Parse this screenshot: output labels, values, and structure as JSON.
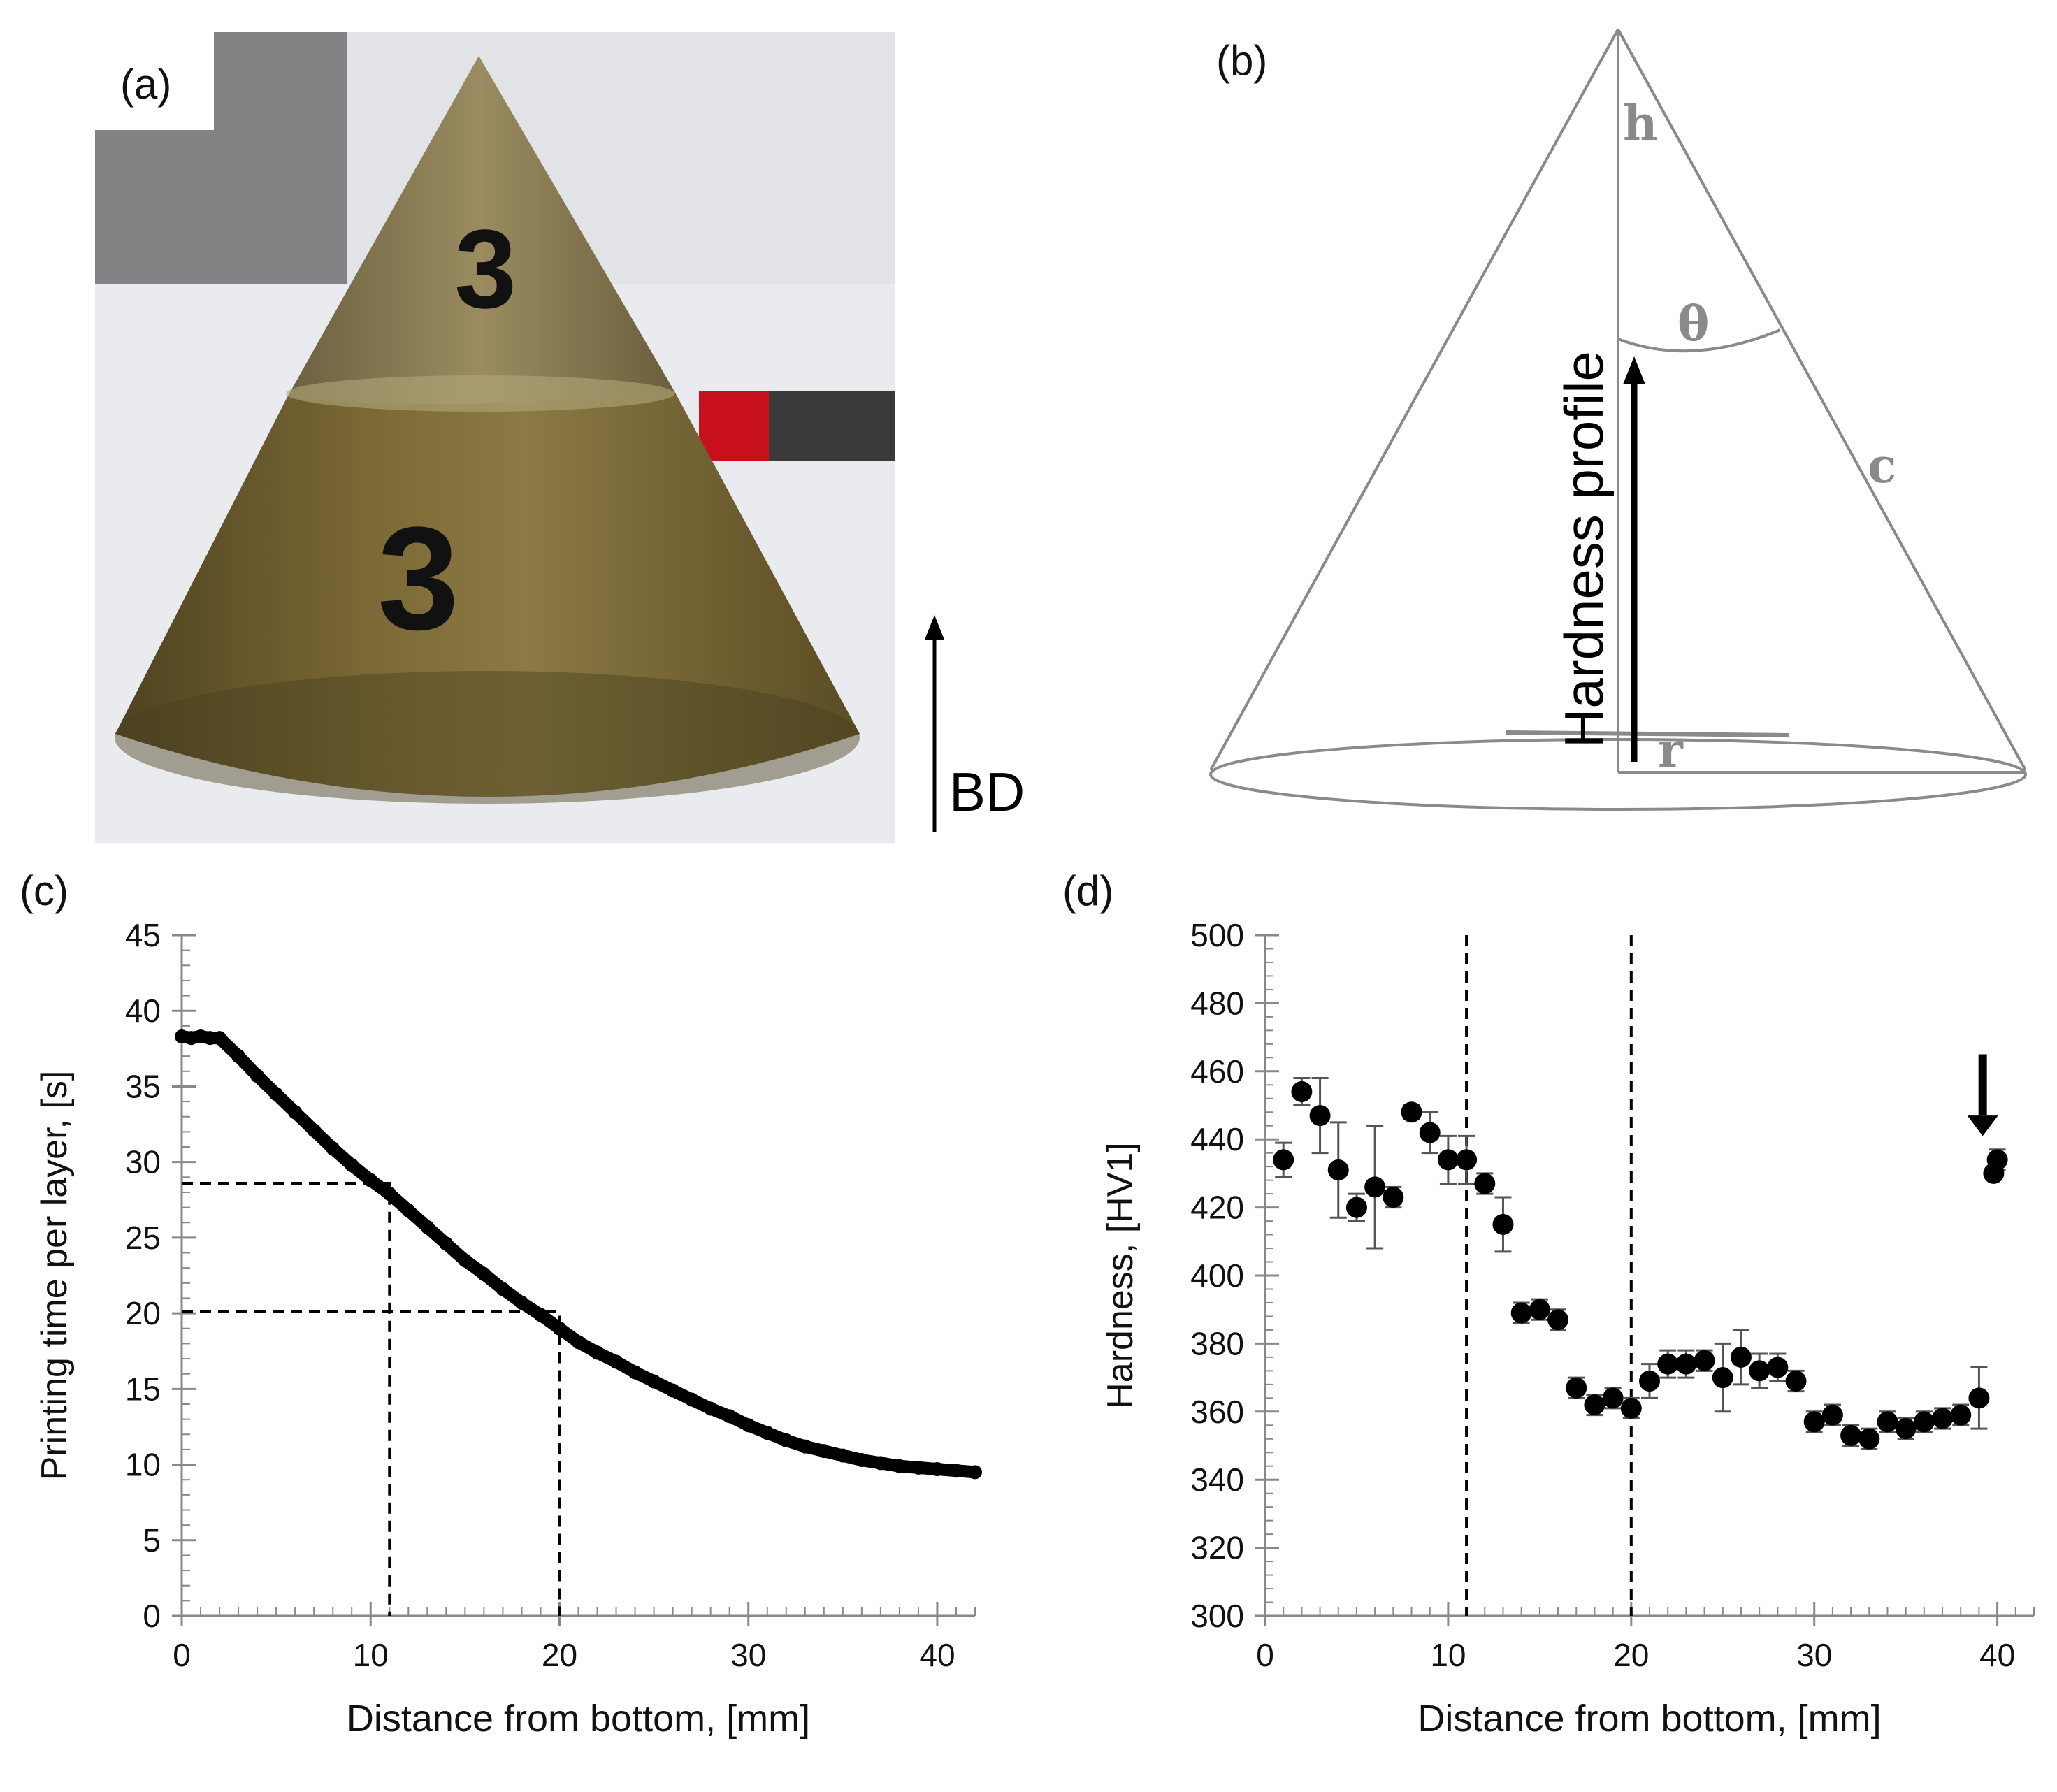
{
  "panels": {
    "a": {
      "label": "(a)",
      "build_direction_label": "BD",
      "marking_top": "3",
      "marking_bottom": "3"
    },
    "b": {
      "label": "(b)",
      "profile_label": "Hardness profile",
      "h": "h",
      "theta": "θ",
      "c": "c",
      "r": "r"
    },
    "c": {
      "label": "(c)"
    },
    "d": {
      "label": "(d)"
    }
  },
  "colors": {
    "ink": "#000000",
    "axis": "#888888",
    "diagram": "#8a8a8a",
    "bronze": "#6b5a2a",
    "bronze_light": "#8a7a48",
    "bg_dark": "#1c1c1c"
  },
  "chart_data": [
    {
      "id": "c",
      "type": "scatter",
      "title": "",
      "xlabel": "Distance from bottom, [mm]",
      "ylabel": "Printing time per layer, [s]",
      "xlim": [
        0,
        42
      ],
      "ylim": [
        0,
        45
      ],
      "xticks": [
        "0",
        "10",
        "20",
        "30",
        "40"
      ],
      "yticks": [
        "0",
        "5",
        "10",
        "15",
        "20",
        "25",
        "30",
        "35",
        "40",
        "45"
      ],
      "series": [
        {
          "name": "Printing time per layer",
          "x": [
            0,
            0.5,
            1,
            1.5,
            2,
            3,
            4,
            5,
            6,
            7,
            8,
            9,
            10,
            11,
            12,
            13,
            14,
            15,
            16,
            17,
            18,
            19,
            20,
            21,
            22,
            23,
            24,
            25,
            26,
            27,
            28,
            29,
            30,
            31,
            32,
            33,
            34,
            35,
            36,
            37,
            38,
            39,
            40,
            41,
            42
          ],
          "y": [
            38.3,
            38.2,
            38.3,
            38.2,
            38.2,
            37.0,
            35.7,
            34.5,
            33.3,
            32.1,
            30.9,
            29.8,
            28.8,
            27.9,
            26.8,
            25.7,
            24.6,
            23.5,
            22.6,
            21.6,
            20.7,
            19.9,
            19.0,
            18.1,
            17.4,
            16.8,
            16.1,
            15.5,
            14.9,
            14.3,
            13.7,
            13.2,
            12.6,
            12.1,
            11.6,
            11.2,
            10.9,
            10.6,
            10.3,
            10.1,
            9.9,
            9.8,
            9.7,
            9.6,
            9.5
          ]
        }
      ],
      "reference_lines": [
        {
          "x": 11,
          "y": 28.6
        },
        {
          "x": 20,
          "y": 20.1
        }
      ]
    },
    {
      "id": "d",
      "type": "scatter",
      "title": "",
      "xlabel": "Distance from bottom, [mm]",
      "ylabel": "Hardness, [HV1]",
      "xlim": [
        0,
        42
      ],
      "ylim": [
        300,
        500
      ],
      "xticks": [
        "0",
        "10",
        "20",
        "30",
        "40"
      ],
      "yticks": [
        "300",
        "320",
        "340",
        "360",
        "380",
        "400",
        "420",
        "440",
        "460",
        "480",
        "500"
      ],
      "series": [
        {
          "name": "Hardness",
          "x": [
            1,
            2,
            3,
            4,
            5,
            6,
            7,
            8,
            9,
            10,
            11,
            12,
            13,
            14,
            15,
            16,
            17,
            18,
            19,
            20,
            21,
            22,
            23,
            24,
            25,
            26,
            27,
            28,
            29,
            30,
            31,
            32,
            33,
            34,
            35,
            36,
            37,
            38,
            39,
            40
          ],
          "y": [
            434,
            454,
            447,
            431,
            420,
            426,
            423,
            448,
            442,
            434,
            434,
            427,
            415,
            389,
            390,
            387,
            367,
            362,
            364,
            361,
            369,
            374,
            374,
            375,
            370,
            376,
            372,
            373,
            369,
            357,
            359,
            353,
            352,
            357,
            355,
            357,
            358,
            359,
            364,
            434
          ],
          "err": [
            5,
            4,
            11,
            14,
            4,
            18,
            3,
            2,
            6,
            7,
            7,
            3,
            8,
            3,
            3,
            3,
            3,
            3,
            3,
            3,
            5,
            4,
            4,
            3,
            10,
            8,
            5,
            4,
            3,
            3,
            3,
            3,
            3,
            3,
            3,
            3,
            3,
            3,
            9,
            3
          ]
        }
      ],
      "extra_points": [
        {
          "x": 39.8,
          "y": 430
        }
      ],
      "reference_lines_x": [
        11,
        20
      ],
      "annotation": "arrow pointing down to last points"
    }
  ]
}
